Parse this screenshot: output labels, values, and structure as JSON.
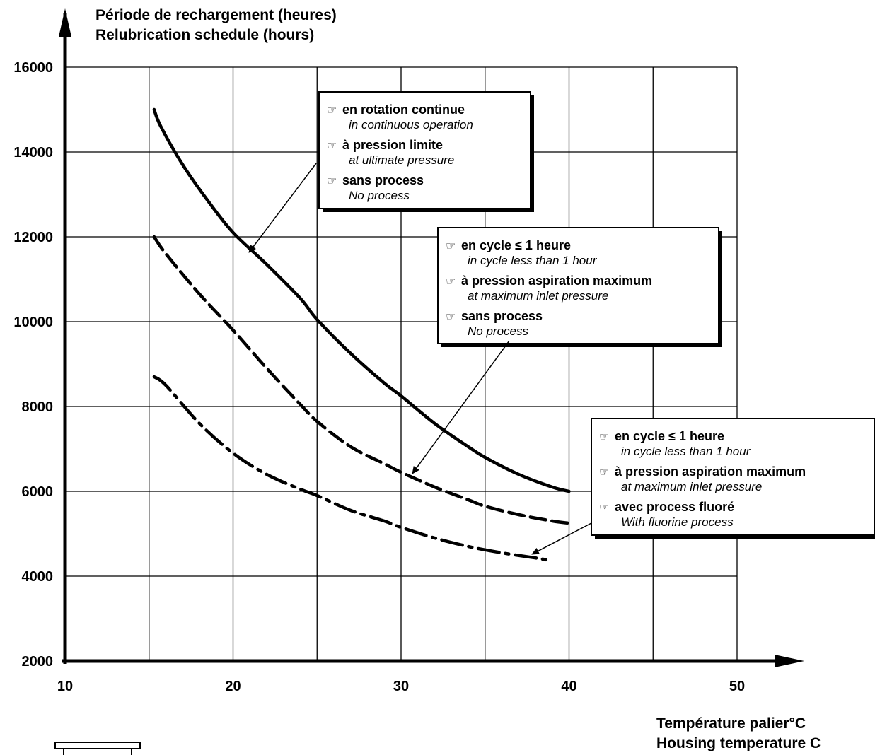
{
  "chart_data": {
    "type": "line",
    "ylabel_fr": "Période de rechargement (heures)",
    "ylabel_en": "Relubrication schedule (hours)",
    "xlabel_fr": "Température palier°C",
    "xlabel_en": "Housing temperature C",
    "xlim": [
      10,
      50
    ],
    "ylim": [
      2000,
      16000
    ],
    "x_ticks": [
      10,
      20,
      30,
      40,
      50
    ],
    "y_ticks": [
      2000,
      4000,
      6000,
      8000,
      10000,
      12000,
      14000,
      16000
    ],
    "grid": true,
    "series": [
      {
        "style": "solid",
        "points": [
          [
            15.3,
            15000
          ],
          [
            15.7,
            14600
          ],
          [
            17,
            13700
          ],
          [
            18.5,
            12850
          ],
          [
            20,
            12100
          ],
          [
            22,
            11350
          ],
          [
            24,
            10550
          ],
          [
            25,
            10050
          ],
          [
            27,
            9250
          ],
          [
            29,
            8550
          ],
          [
            30,
            8250
          ],
          [
            32,
            7600
          ],
          [
            34,
            7050
          ],
          [
            35,
            6800
          ],
          [
            37,
            6400
          ],
          [
            39,
            6100
          ],
          [
            40,
            6000
          ]
        ]
      },
      {
        "style": "dashed",
        "points": [
          [
            15.3,
            12000
          ],
          [
            16,
            11600
          ],
          [
            18,
            10650
          ],
          [
            20,
            9800
          ],
          [
            22,
            8900
          ],
          [
            24,
            8050
          ],
          [
            25,
            7650
          ],
          [
            27,
            7050
          ],
          [
            29,
            6650
          ],
          [
            30,
            6450
          ],
          [
            32,
            6100
          ],
          [
            34,
            5800
          ],
          [
            35,
            5650
          ],
          [
            37,
            5450
          ],
          [
            39,
            5300
          ],
          [
            40,
            5250
          ]
        ]
      },
      {
        "style": "dash-dot",
        "points": [
          [
            15.3,
            8700
          ],
          [
            16,
            8500
          ],
          [
            18,
            7600
          ],
          [
            20,
            6900
          ],
          [
            22,
            6400
          ],
          [
            24,
            6050
          ],
          [
            25,
            5900
          ],
          [
            27,
            5550
          ],
          [
            29,
            5300
          ],
          [
            30,
            5150
          ],
          [
            32,
            4900
          ],
          [
            34,
            4700
          ],
          [
            36,
            4550
          ],
          [
            38,
            4430
          ],
          [
            38.7,
            4380
          ]
        ]
      }
    ],
    "annotations": [
      {
        "id": "box1",
        "lines": [
          {
            "text": "en rotation continue",
            "sub": "in continuous operation"
          },
          {
            "text": "à pression limite",
            "sub": "at ultimate pressure"
          },
          {
            "text": "sans process",
            "sub": "No process"
          }
        ]
      },
      {
        "id": "box2",
        "lines": [
          {
            "text": "en cycle ≤ 1 heure",
            "sub": "in cycle less than 1 hour"
          },
          {
            "text": "à pression aspiration maximum",
            "sub": "at maximum inlet pressure"
          },
          {
            "text": "sans process",
            "sub": "No process"
          }
        ]
      },
      {
        "id": "box3",
        "lines": [
          {
            "text": "en cycle ≤ 1 heure",
            "sub": "in cycle less than 1 hour"
          },
          {
            "text": "à pression aspiration maximum",
            "sub": "at maximum inlet pressure"
          },
          {
            "text": "avec process fluoré",
            "sub": "With fluorine process"
          }
        ]
      }
    ]
  },
  "icons": {
    "bullet": "pointing-hand-icon",
    "corner_logo": "pump-outline-icon"
  }
}
